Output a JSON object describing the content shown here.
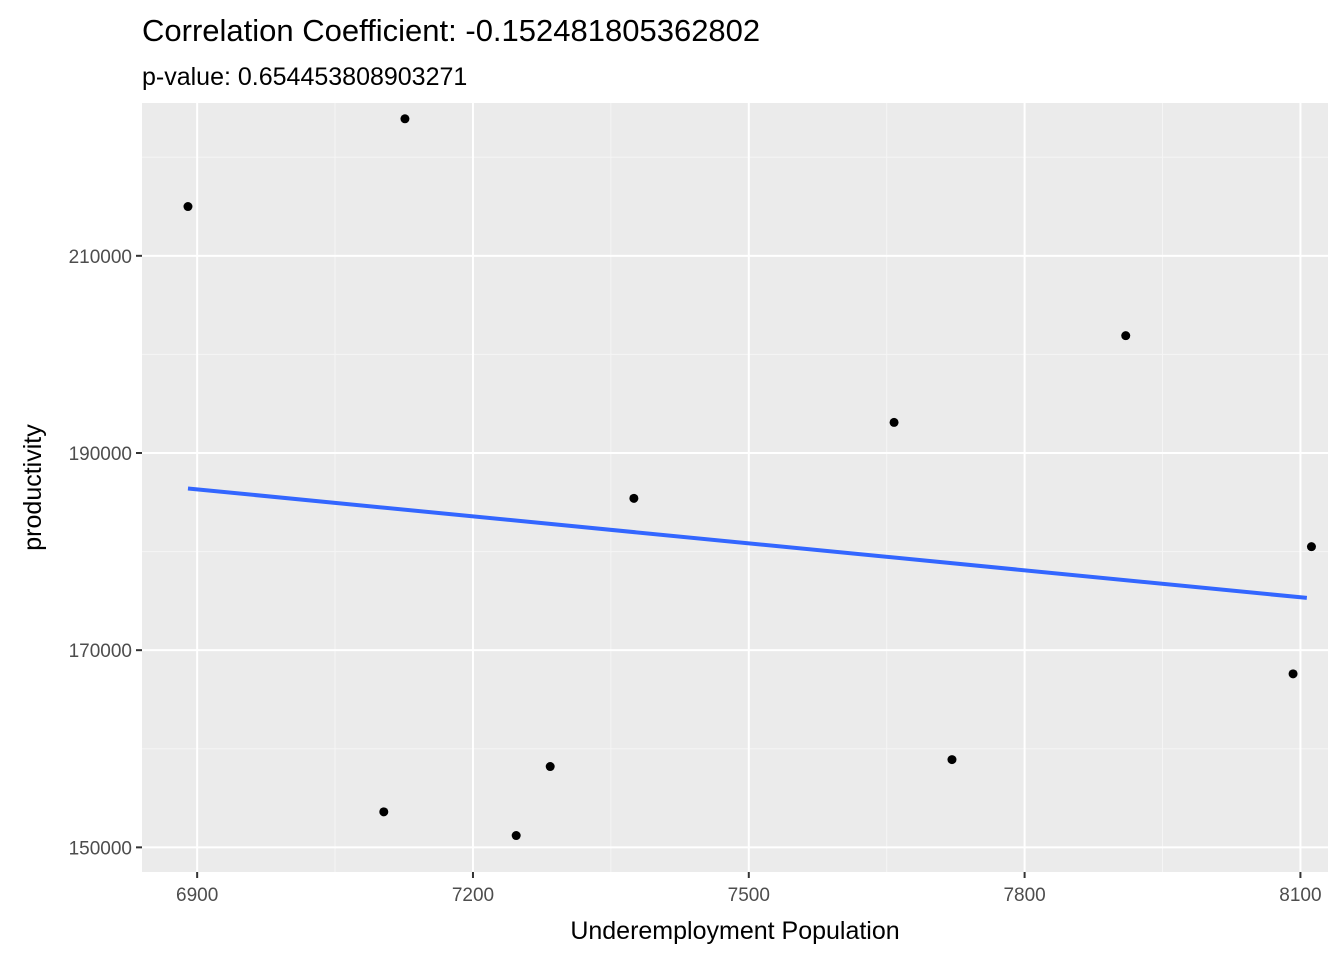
{
  "chart_data": {
    "type": "scatter",
    "title": "Correlation Coefficient: -0.152481805362802",
    "subtitle": "p-value: 0.654453808903271",
    "xlabel": "Underemployment Population",
    "ylabel": "productivity",
    "xlim": [
      6840,
      8130
    ],
    "ylim": [
      147500,
      225500
    ],
    "x_ticks": [
      6900,
      7200,
      7500,
      7800,
      8100
    ],
    "x_tick_labels": [
      "6900",
      "7200",
      "7500",
      "7800",
      "8100"
    ],
    "y_ticks": [
      150000,
      170000,
      190000,
      210000
    ],
    "y_tick_labels": [
      "150000",
      "170000",
      "190000",
      "210000"
    ],
    "grid": true,
    "points": [
      {
        "x": 6890,
        "y": 215000
      },
      {
        "x": 7126,
        "y": 223900
      },
      {
        "x": 7103,
        "y": 153600
      },
      {
        "x": 7247,
        "y": 151200
      },
      {
        "x": 7284,
        "y": 158200
      },
      {
        "x": 7375,
        "y": 185400
      },
      {
        "x": 7658,
        "y": 193100
      },
      {
        "x": 7721,
        "y": 158900
      },
      {
        "x": 7910,
        "y": 201900
      },
      {
        "x": 8092,
        "y": 167600
      },
      {
        "x": 8112,
        "y": 180500
      }
    ],
    "trend_line": {
      "method": "lm",
      "x": [
        6890,
        8107
      ],
      "y": [
        186400,
        175300
      ]
    },
    "colors": {
      "panel": "#ebebeb",
      "grid_major": "#ffffff",
      "grid_minor": "#f5f5f5",
      "point": "#000000",
      "trend": "#3366ff"
    }
  }
}
